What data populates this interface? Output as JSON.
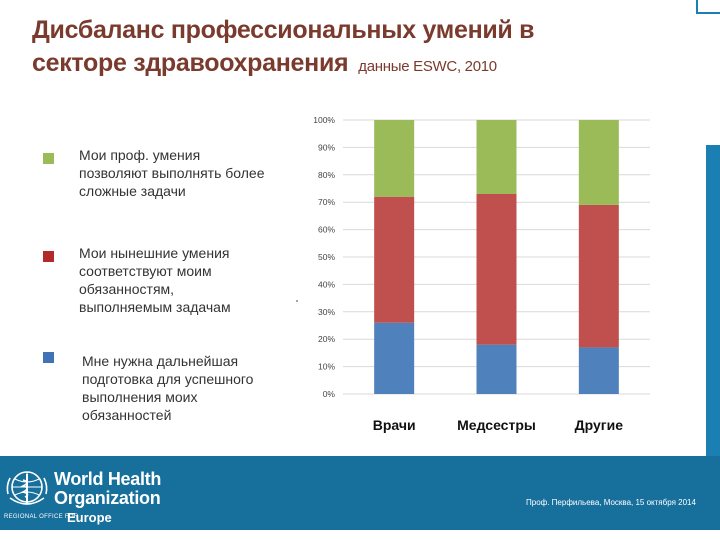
{
  "slide": {
    "title_line1": "Дисбаланс профессиональных умений в",
    "title_line2": "секторе здравоохранения",
    "source": "данные ESWC, 2010"
  },
  "legend": [
    {
      "label": "Мои проф. умения позволяют выполнять более сложные задачи",
      "color": "#9bbb59"
    },
    {
      "label": "Мои нынешние умения соответствуют моим обязанностям, выполняемым задачам",
      "color": "#b22a2a"
    },
    {
      "label": "Мне нужна дальнейшая подготовка для успешного выполнения моих обязанностей",
      "color": "#3f73b5"
    }
  ],
  "chart_data": {
    "type": "bar",
    "stacked": true,
    "categories": [
      "Врачи",
      "Медсестры",
      "Другие"
    ],
    "series": [
      {
        "name": "Мне нужна дальнейшая подготовка для успешного выполнения моих обязанностей",
        "color": "#4f81bd",
        "values": [
          26,
          18,
          17
        ]
      },
      {
        "name": "Мои нынешние умения соответствуют моим обязанностям, выполняемым задачам",
        "color": "#c0504d",
        "values": [
          46,
          55,
          52
        ]
      },
      {
        "name": "Мои проф. умения позволяют выполнять более сложные задачи",
        "color": "#9bbb59",
        "values": [
          28,
          27,
          31
        ]
      }
    ],
    "ylim": [
      0,
      100
    ],
    "yticks": [
      "0%",
      "10%",
      "20%",
      "30%",
      "40%",
      "50%",
      "60%",
      "70%",
      "80%",
      "90%",
      "100%"
    ],
    "grid": true,
    "title": "",
    "xlabel": "",
    "ylabel": ""
  },
  "footer": {
    "org_line1": "World Health",
    "org_line2": "Organization",
    "region_label": "REGIONAL OFFICE FOR",
    "region": "Europe",
    "note": "Проф. Перфильева, Москва, 15 октября 2014"
  }
}
